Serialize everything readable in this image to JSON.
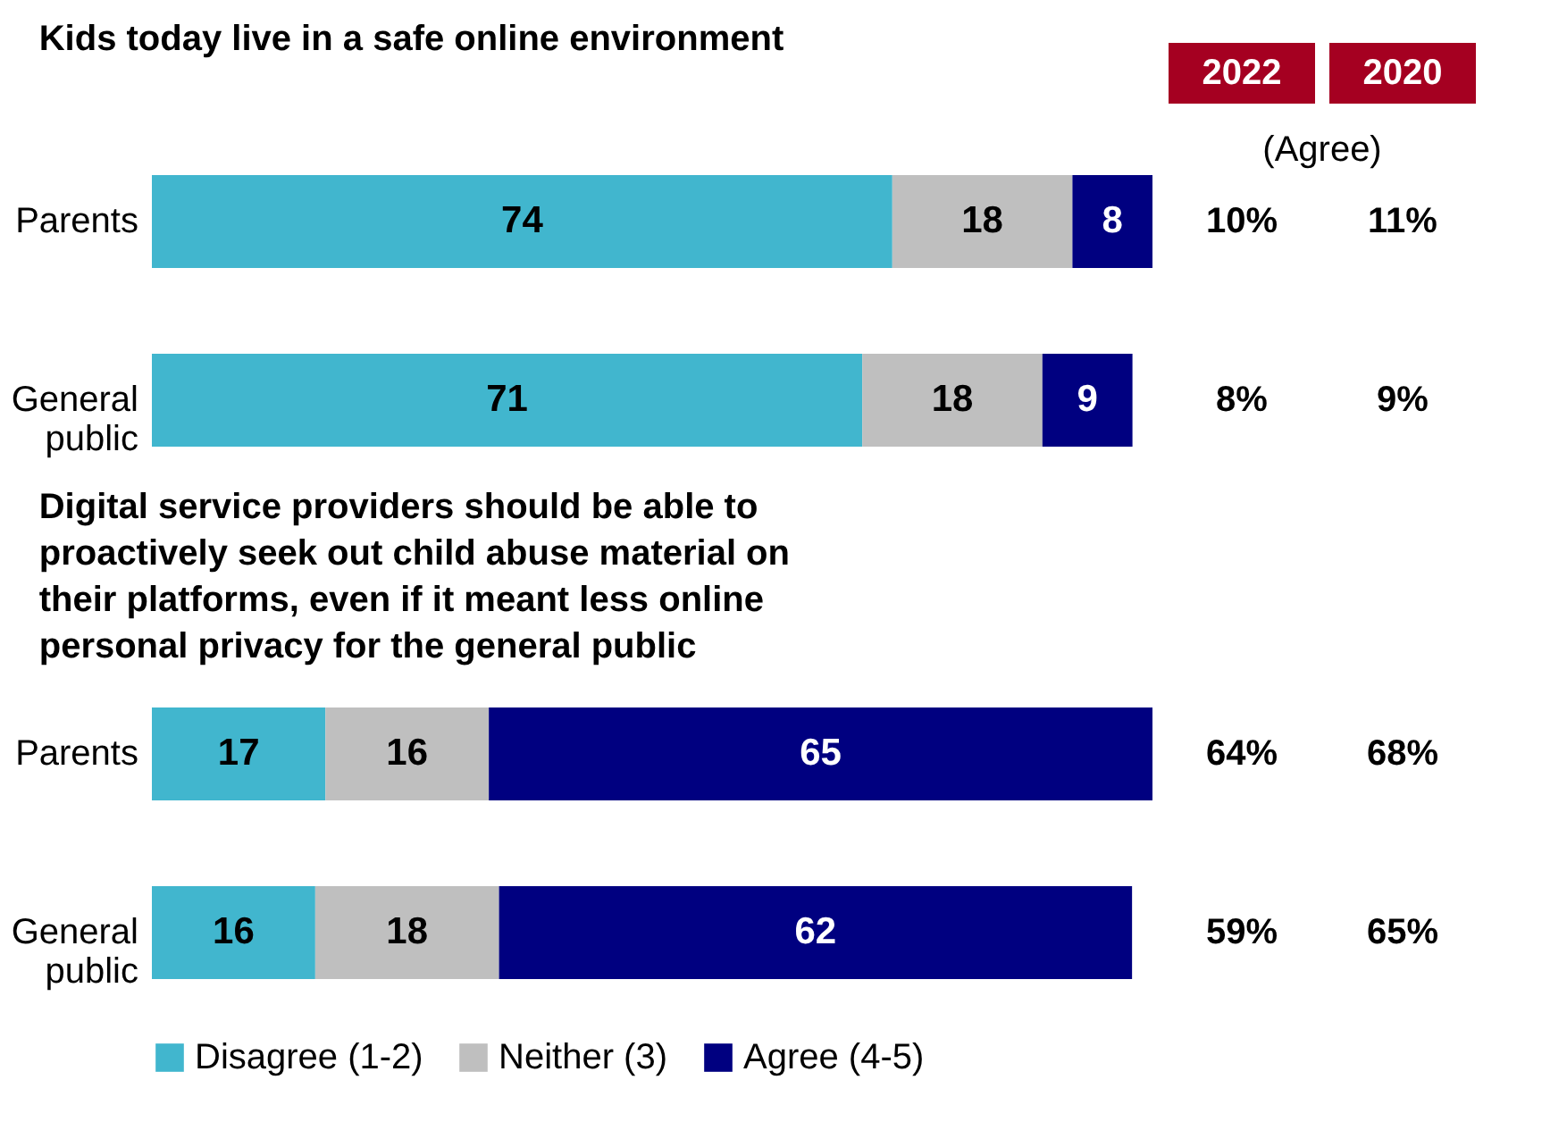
{
  "chart_data": [
    {
      "type": "bar",
      "stacked": true,
      "orientation": "horizontal",
      "title": "Kids today live in a safe online environment",
      "categories": [
        "Parents",
        "General public"
      ],
      "tick_labels": "y",
      "data_labels": true,
      "series": [
        {
          "color": "#41b6ce",
          "values": [
            74,
            71
          ]
        },
        {
          "color": "#bfbfbf",
          "values": [
            18,
            18
          ]
        },
        {
          "color": "#000080",
          "values": [
            8,
            9
          ]
        }
      ],
      "annotations": [
        "2022",
        "2020",
        "(Agree)",
        "10%",
        "11%",
        "8%",
        "9%"
      ]
    },
    {
      "type": "bar",
      "stacked": true,
      "orientation": "horizontal",
      "title": "Digital service providers should be able to proactively seek out child abuse material on their platforms, even if it meant less online personal privacy for the general public",
      "categories": [
        "Parents",
        "General public"
      ],
      "tick_labels": "y",
      "data_labels": true,
      "legend": "bottom",
      "series": [
        {
          "name": "Disagree (1-2)",
          "color": "#41b6ce",
          "values": [
            17,
            16
          ]
        },
        {
          "name": "Neither (3)",
          "color": "#bfbfbf",
          "values": [
            16,
            18
          ]
        },
        {
          "name": "Agree (4-5)",
          "color": "#000080",
          "values": [
            65,
            62
          ]
        }
      ],
      "annotations": [
        "64%",
        "68%",
        "59%",
        "65%"
      ]
    }
  ]
}
